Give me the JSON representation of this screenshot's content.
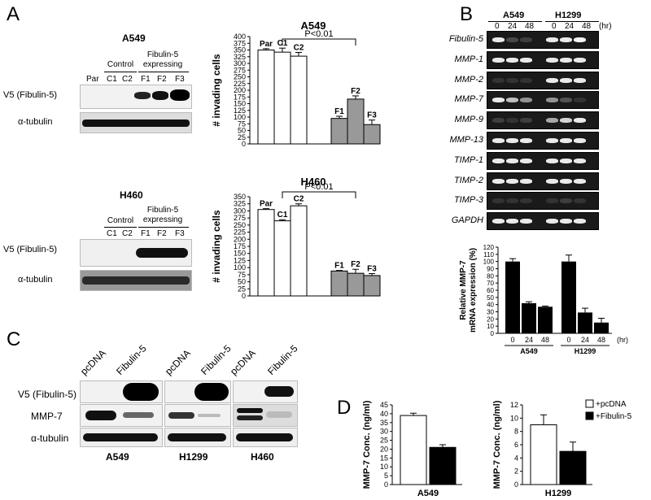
{
  "panels": {
    "a": "A",
    "b": "B",
    "c": "C",
    "d": "D"
  },
  "panelA": {
    "blot1": {
      "cell_line": "A549",
      "group_control": "Control",
      "group_fibulin_l1": "Fibulin-5",
      "group_fibulin_l2": "expressing",
      "lanes": [
        "Par",
        "C1",
        "C2",
        "F1",
        "F2",
        "F3"
      ],
      "row_labels": [
        "V5 (Fibulin-5)",
        "α-tubulin"
      ]
    },
    "blot2": {
      "cell_line": "H460",
      "group_control": "Control",
      "group_fibulin_l1": "Fibulin-5",
      "group_fibulin_l2": "expressing",
      "lanes": [
        "C1",
        "C2",
        "F1",
        "F2",
        "F3"
      ],
      "row_labels": [
        "V5 (Fibulin-5)",
        "α-tubulin"
      ]
    }
  },
  "panelB": {
    "header_lines": [
      "A549",
      "H1299"
    ],
    "timepoints": [
      "0",
      "24",
      "48",
      "0",
      "24",
      "48"
    ],
    "unit": "(hr)",
    "genes": [
      "Fibulin-5",
      "MMP-1",
      "MMP-2",
      "MMP-7",
      "MMP-9",
      "MMP-13",
      "TIMP-1",
      "TIMP-2",
      "TIMP-3",
      "GAPDH"
    ]
  },
  "panelC": {
    "lanes": [
      "pcDNA",
      "Fibulin-5",
      "pcDNA",
      "Fibulin-5",
      "pcDNA",
      "Fibulin-5"
    ],
    "row_labels": [
      "V5 (Fibulin-5)",
      "MMP-7",
      "α-tubulin"
    ],
    "cell_lines": [
      "A549",
      "H1299",
      "H460"
    ]
  },
  "chart_data": [
    {
      "type": "bar",
      "title": "A549",
      "ylabel": "# invading cells",
      "ylim": [
        0,
        400
      ],
      "yticks": [
        0,
        25,
        50,
        75,
        100,
        125,
        150,
        175,
        200,
        225,
        250,
        275,
        300,
        325,
        350,
        375,
        400
      ],
      "categories": [
        "Par",
        "C1",
        "C2",
        "F1",
        "F2",
        "F3"
      ],
      "values": [
        350,
        342,
        327,
        95,
        167,
        72
      ],
      "errors": [
        5,
        15,
        14,
        8,
        12,
        17
      ],
      "colors": [
        "#ffffff",
        "#ffffff",
        "#ffffff",
        "#999999",
        "#999999",
        "#999999"
      ],
      "annotation": "P<0.01"
    },
    {
      "type": "bar",
      "title": "H460",
      "ylabel": "# invading cells",
      "ylim": [
        0,
        350
      ],
      "yticks": [
        0,
        25,
        50,
        75,
        100,
        125,
        150,
        175,
        200,
        225,
        250,
        275,
        300,
        325,
        350
      ],
      "categories": [
        "Par",
        "C1",
        "C2",
        "F1",
        "F2",
        "F3"
      ],
      "values": [
        305,
        265,
        318,
        88,
        80,
        72
      ],
      "errors": [
        3,
        4,
        7,
        2,
        14,
        7
      ],
      "colors": [
        "#ffffff",
        "#ffffff",
        "#ffffff",
        "#999999",
        "#999999",
        "#999999"
      ],
      "annotation": "P<0.01"
    },
    {
      "type": "bar",
      "ylabel_l1": "Relative MMP-7",
      "ylabel_l2": "mRNA expression (%)",
      "ylim": [
        0,
        120
      ],
      "yticks": [
        0,
        10,
        20,
        30,
        40,
        50,
        60,
        70,
        80,
        90,
        100,
        110,
        120
      ],
      "groups": [
        "A549",
        "H1299"
      ],
      "categories": [
        "0",
        "24",
        "48",
        "0",
        "24",
        "48"
      ],
      "values": [
        100,
        42,
        37,
        100,
        29,
        15
      ],
      "errors": [
        4,
        2,
        1,
        9,
        6,
        6
      ],
      "xunit": "(hr)"
    },
    {
      "type": "bar",
      "ylabel": "MMP-7 Conc. (ng/ml)",
      "ylim": [
        0,
        45
      ],
      "yticks": [
        0,
        5,
        10,
        15,
        20,
        25,
        30,
        35,
        40,
        45
      ],
      "xlabel": "A549",
      "series": [
        {
          "name": "+pcDNA",
          "values": [
            39
          ],
          "errors": [
            1.3
          ]
        },
        {
          "name": "+Fibulin-5",
          "values": [
            21
          ],
          "errors": [
            1.5
          ]
        }
      ]
    },
    {
      "type": "bar",
      "ylabel": "MMP-7 Conc. (ng/ml)",
      "ylim": [
        0,
        12
      ],
      "yticks": [
        0,
        2,
        4,
        6,
        8,
        10,
        12
      ],
      "xlabel": "H1299",
      "series": [
        {
          "name": "+pcDNA",
          "values": [
            9
          ],
          "errors": [
            1.5
          ]
        },
        {
          "name": "+Fibulin-5",
          "values": [
            5
          ],
          "errors": [
            1.4
          ]
        }
      ],
      "legend": [
        "+pcDNA",
        "+Fibulin-5"
      ]
    }
  ]
}
